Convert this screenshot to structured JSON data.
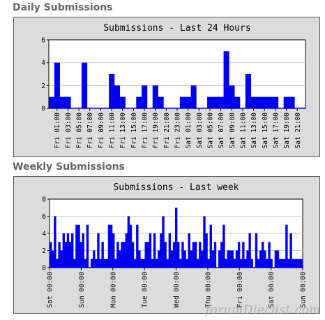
{
  "sections": {
    "daily_title": "Daily Submissions",
    "weekly_title": "Weekly Submissions"
  },
  "watermark": "forumDiecast.com",
  "colors": {
    "bar": "#0000ee",
    "plot_bg": "#ffffff",
    "panel_bg": "#dcdcdc",
    "grid": "#cccccc"
  },
  "chart_data": [
    {
      "type": "bar",
      "title": "Submissions - Last 24 Hours",
      "xlabel": "",
      "ylabel": "",
      "ylim": [
        0,
        6
      ],
      "yticks": [
        0,
        2,
        4,
        6
      ],
      "grid": true,
      "categories": [
        "Fri 00:00",
        "Fri 01:00",
        "Fri 02:00",
        "Fri 03:00",
        "Fri 04:00",
        "Fri 05:00",
        "Fri 06:00",
        "Fri 07:00",
        "Fri 08:00",
        "Fri 09:00",
        "Fri 10:00",
        "Fri 11:00",
        "Fri 12:00",
        "Fri 13:00",
        "Fri 14:00",
        "Fri 15:00",
        "Fri 16:00",
        "Fri 17:00",
        "Fri 18:00",
        "Fri 19:00",
        "Fri 20:00",
        "Fri 21:00",
        "Fri 22:00",
        "Fri 23:00",
        "Sat 00:00",
        "Sat 01:00",
        "Sat 02:00",
        "Sat 03:00",
        "Sat 04:00",
        "Sat 05:00",
        "Sat 06:00",
        "Sat 07:00",
        "Sat 08:00",
        "Sat 09:00",
        "Sat 10:00",
        "Sat 11:00",
        "Sat 12:00",
        "Sat 13:00",
        "Sat 14:00",
        "Sat 15:00",
        "Sat 16:00",
        "Sat 17:00",
        "Sat 18:00",
        "Sat 19:00",
        "Sat 20:00",
        "Sat 21:00",
        "Sat 22:00"
      ],
      "tick_labels": [
        "Fri 01:00",
        "Fri 03:00",
        "Fri 05:00",
        "Fri 07:00",
        "Fri 09:00",
        "Fri 11:00",
        "Fri 13:00",
        "Fri 15:00",
        "Fri 17:00",
        "Fri 19:00",
        "Fri 21:00",
        "Fri 23:00",
        "Sat 01:00",
        "Sat 03:00",
        "Sat 05:00",
        "Sat 07:00",
        "Sat 09:00",
        "Sat 11:00",
        "Sat 13:00",
        "Sat 15:00",
        "Sat 17:00",
        "Sat 19:00",
        "Sat 21:00"
      ],
      "values": [
        1,
        4,
        1,
        1,
        0,
        0,
        4,
        0,
        0,
        0,
        0,
        3,
        2,
        1,
        0,
        0,
        1,
        2,
        0,
        2,
        1,
        0,
        0,
        0,
        1,
        1,
        2,
        0,
        0,
        1,
        1,
        1,
        5,
        2,
        1,
        0,
        3,
        1,
        1,
        1,
        1,
        1,
        0,
        1,
        1,
        0,
        0
      ]
    },
    {
      "type": "bar",
      "title": "Submissions - Last week",
      "xlabel": "",
      "ylabel": "",
      "ylim": [
        0,
        8
      ],
      "yticks": [
        0,
        2,
        4,
        6,
        8
      ],
      "grid": true,
      "tick_labels": [
        "Sat 00:00",
        "Sun 00:00",
        "Mon 00:00",
        "Tue 00:00",
        "Wed 00:00",
        "Thu 00:00",
        "Fri 00:00",
        "Sat 00:00",
        "Sun 00:00"
      ],
      "values": [
        3,
        2,
        6,
        1,
        3,
        2,
        4,
        3,
        4,
        3,
        4,
        1,
        5,
        5,
        3,
        4,
        1,
        5,
        0,
        1,
        2,
        1,
        4,
        1,
        3,
        1,
        1,
        5,
        5,
        4,
        1,
        3,
        2,
        3,
        3,
        4,
        6,
        5,
        3,
        1,
        5,
        2,
        1,
        1,
        3,
        3,
        4,
        1,
        4,
        1,
        2,
        4,
        6,
        3,
        1,
        4,
        2,
        3,
        7,
        3,
        1,
        3,
        2,
        1,
        4,
        2,
        3,
        3,
        1,
        3,
        2,
        6,
        4,
        1,
        5,
        2,
        3,
        0,
        2,
        3,
        5,
        1,
        2,
        2,
        2,
        1,
        2,
        3,
        1,
        3,
        1,
        2,
        4,
        1,
        0,
        4,
        1,
        2,
        3,
        2,
        1,
        3,
        1,
        0,
        2,
        2,
        1,
        1,
        1,
        5,
        1,
        4,
        1,
        1,
        1,
        1,
        1
      ]
    }
  ]
}
